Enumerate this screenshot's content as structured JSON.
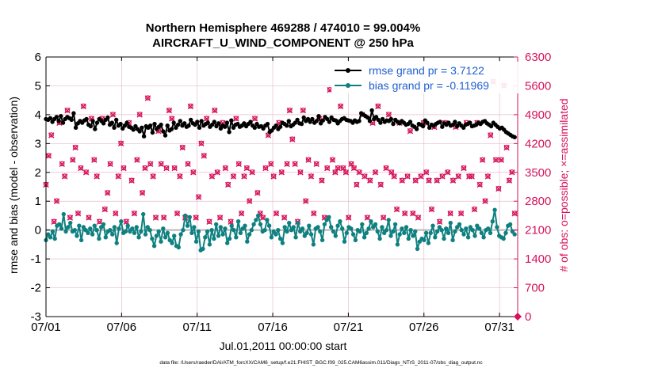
{
  "chart_data": {
    "type": "line",
    "title_line1": "Northern Hemisphere 469288 / 474010 = 99.004%",
    "title_line2": "AIRCRAFT_U_WIND_COMPONENT @ 250 hPa",
    "xlabel": "Jul.01,2011 00:00:00 start",
    "ylabel_left": "rmse and bias (model - observation)",
    "ylabel_right": "# of obs: o=possible; ×=assimilated",
    "xlim": [
      0,
      31.2
    ],
    "ylim_left": [
      -3,
      6
    ],
    "ylim_right": [
      0,
      6300
    ],
    "x_ticks": [
      {
        "value": 0,
        "label": "07/01"
      },
      {
        "value": 5,
        "label": "07/06"
      },
      {
        "value": 10,
        "label": "07/11"
      },
      {
        "value": 15,
        "label": "07/16"
      },
      {
        "value": 20,
        "label": "07/21"
      },
      {
        "value": 25,
        "label": "07/26"
      },
      {
        "value": 30,
        "label": "07/31"
      }
    ],
    "y_ticks_left": [
      "-3",
      "-2",
      "-1",
      "0",
      "1",
      "2",
      "3",
      "4",
      "5",
      "6"
    ],
    "y_ticks_right": [
      "0",
      "700",
      "1400",
      "2100",
      "2800",
      "3500",
      "4200",
      "4900",
      "5600",
      "6300"
    ],
    "grid": true,
    "legend_position": "top-right",
    "colors": {
      "rmse": "#000000",
      "bias": "#0f8080",
      "obs": "#d6135a",
      "legend_text": "#1f5fd0",
      "grid": "#e8bcd0",
      "zero_line": "#b5b5b5"
    },
    "series": [
      {
        "name": "rmse grand pr = 3.7122",
        "axis": "left",
        "values": [
          3.85,
          3.82,
          3.88,
          3.75,
          3.85,
          3.92,
          3.78,
          3.95,
          3.72,
          3.85,
          3.92,
          3.88,
          3.82,
          4.05,
          3.55,
          3.7,
          3.78,
          3.72,
          3.8,
          3.85,
          3.65,
          3.6,
          3.78,
          3.5,
          3.72,
          3.85,
          3.78,
          3.7,
          3.82,
          3.9,
          3.65,
          3.72,
          3.55,
          3.82,
          3.62,
          3.68,
          3.52,
          3.62,
          3.72,
          3.58,
          3.55,
          3.48,
          3.6,
          3.5,
          3.42,
          3.55,
          3.25,
          3.6,
          3.55,
          3.62,
          3.38,
          3.68,
          3.5,
          3.58,
          3.65,
          3.42,
          3.28,
          3.62,
          3.45,
          3.5,
          3.72,
          3.55,
          3.65,
          3.78,
          3.62,
          3.7,
          3.58,
          3.62,
          3.82,
          3.7,
          3.65,
          3.75,
          3.55,
          3.78,
          3.62,
          3.68,
          3.72,
          3.58,
          3.65,
          3.75,
          3.6,
          3.7,
          3.52,
          3.62,
          3.58,
          3.72,
          3.4,
          3.8,
          3.55,
          3.65,
          3.68,
          3.58,
          3.62,
          3.7,
          3.6,
          3.68,
          3.75,
          3.62,
          3.55,
          3.68,
          3.58,
          3.6,
          3.52,
          3.62,
          3.68,
          3.4,
          3.45,
          3.55,
          3.62,
          3.5,
          3.58,
          3.72,
          3.68,
          3.62,
          3.78,
          3.6,
          3.65,
          3.72,
          3.82,
          3.7,
          3.68,
          3.9,
          3.78,
          3.85,
          3.75,
          3.85,
          3.72,
          3.78,
          3.95,
          3.7,
          3.8,
          3.92,
          3.85,
          3.75,
          3.9,
          3.82,
          3.8,
          3.7,
          3.78,
          3.85,
          3.88,
          3.82,
          3.8,
          3.78,
          3.72,
          3.8,
          3.75,
          3.78,
          4.05,
          4.0,
          3.95,
          3.9,
          3.78,
          4.15,
          3.85,
          3.92,
          3.82,
          3.72,
          3.85,
          3.75,
          3.8,
          3.78,
          3.85,
          3.68,
          3.82,
          3.75,
          3.7,
          3.78,
          3.72,
          3.65,
          3.68,
          3.75,
          3.62,
          3.58,
          3.5,
          3.68,
          3.65,
          3.6,
          3.8,
          3.72,
          3.55,
          3.65,
          3.62,
          3.68,
          3.72,
          3.75,
          3.58,
          3.7,
          3.65,
          3.72,
          3.62,
          3.65,
          3.75,
          3.6,
          3.7,
          3.62,
          3.55,
          3.65,
          3.68,
          3.72,
          3.6,
          3.62,
          3.65,
          3.72,
          3.68,
          3.75,
          3.78,
          3.7,
          3.65,
          3.6,
          3.72,
          3.65,
          3.58,
          3.52,
          3.55,
          3.48,
          3.4,
          3.35,
          3.3,
          3.25,
          3.22
        ]
      },
      {
        "name": "bias grand pr = -0.11969",
        "axis": "left",
        "values": [
          -0.35,
          -0.15,
          -0.25,
          -0.05,
          -0.3,
          0.15,
          0.2,
          0.05,
          0.55,
          -0.05,
          0.1,
          0.25,
          -0.05,
          0.0,
          -0.2,
          0.15,
          -0.35,
          0.1,
          0.0,
          -0.1,
          0.05,
          -0.15,
          0.15,
          0.0,
          -0.3,
          0.1,
          0.2,
          -0.25,
          -0.05,
          0.0,
          -0.15,
          0.1,
          -0.45,
          0.05,
          0.3,
          -0.1,
          -0.05,
          0.15,
          -0.05,
          0.05,
          -0.1,
          0.1,
          -0.25,
          -0.05,
          0.55,
          -0.15,
          0.1,
          0.0,
          -0.3,
          -0.55,
          -0.2,
          -0.05,
          -0.4,
          0.05,
          -0.25,
          -0.1,
          -0.35,
          -0.45,
          -0.2,
          -0.55,
          -0.6,
          -0.15,
          0.0,
          0.5,
          0.15,
          0.45,
          -0.1,
          0.1,
          -0.4,
          -0.05,
          -0.7,
          -0.65,
          -0.25,
          -0.05,
          -0.5,
          0.0,
          -0.3,
          0.2,
          -0.2,
          0.1,
          -0.15,
          0.05,
          -0.45,
          -0.3,
          0.15,
          0.0,
          -0.25,
          0.3,
          -0.1,
          0.05,
          0.15,
          -0.4,
          -0.15,
          0.0,
          0.2,
          0.35,
          0.5,
          0.2,
          -0.05,
          0.0,
          0.35,
          0.15,
          -0.25,
          -0.05,
          -0.15,
          0.0,
          -0.3,
          -0.45,
          0.1,
          -0.05,
          0.25,
          0.0,
          0.1,
          -0.25,
          0.25,
          -0.05,
          0.05,
          -0.2,
          -0.1,
          0.15,
          -0.15,
          -0.5,
          0.05,
          0.1,
          -0.05,
          -0.35,
          0.2,
          0.35,
          0.45,
          0.1,
          -0.05,
          -0.2,
          0.15,
          0.3,
          0.05,
          -0.4,
          -0.1,
          0.1,
          0.05,
          -0.15,
          -0.35,
          0.0,
          -0.05,
          0.2,
          -0.25,
          -0.1,
          0.05,
          0.3,
          0.1,
          0.2,
          -0.05,
          -0.3,
          0.1,
          -0.1,
          0.0,
          0.35,
          -0.2,
          -0.05,
          0.2,
          -0.5,
          -0.15,
          0.05,
          -0.1,
          0.1,
          -0.3,
          0.0,
          -0.2,
          -0.05,
          -0.65,
          -0.4,
          -0.3,
          -0.35,
          -0.1,
          -0.45,
          -0.1,
          0.15,
          -0.25,
          -0.05,
          0.1,
          0.0,
          -0.3,
          0.05,
          -0.1,
          0.25,
          -0.35,
          -0.05,
          0.1,
          0.2,
          0.0,
          -0.15,
          0.05,
          -0.25,
          0.1,
          0.0,
          -0.2,
          0.15,
          0.05,
          -0.1,
          -0.25,
          0.0,
          0.05,
          -0.1,
          0.3,
          0.7,
          0.1,
          -0.2,
          -0.25,
          -0.3,
          -0.1,
          0.15,
          0.2,
          -0.05,
          -0.15
        ]
      },
      {
        "name": "observations possible (o) / assimilated (×)",
        "axis": "right",
        "marker": "o and × overlaid",
        "values": [
          3200,
          3900,
          4400,
          2300,
          2800,
          4700,
          3700,
          3400,
          5000,
          2400,
          3800,
          4100,
          2500,
          3600,
          5100,
          3500,
          2400,
          4800,
          3800,
          3400,
          2300,
          4800,
          2600,
          3000,
          3700,
          4900,
          2500,
          3400,
          4200,
          3600,
          2300,
          4700,
          3300,
          2500,
          3800,
          4900,
          3000,
          3600,
          5300,
          3700,
          3400,
          2400,
          4500,
          3700,
          2400,
          3600,
          5000,
          4800,
          3600,
          2500,
          3400,
          4100,
          2400,
          3700,
          5100,
          3500,
          2400,
          2900,
          4200,
          3900,
          4800,
          2300,
          3400,
          5000,
          3500,
          2400,
          4700,
          3600,
          3200,
          2300,
          3400,
          4800,
          3700,
          2500,
          3400,
          3600,
          2800,
          3500,
          4800,
          3000,
          2500,
          2400,
          3600,
          4400,
          3700,
          3400,
          2500,
          4700,
          3500,
          2400,
          3700,
          5000,
          4300,
          3700,
          2300,
          3500,
          5000,
          2800,
          3800,
          3400,
          2500,
          3700,
          4800,
          3300,
          2400,
          3600,
          5500,
          3800,
          3500,
          3600,
          5100,
          3600,
          3500,
          2400,
          3700,
          3600,
          3200,
          3500,
          4900,
          3400,
          2400,
          3300,
          4700,
          3500,
          5100,
          3200,
          2400,
          3600,
          4900,
          3500,
          3400,
          2600,
          4700,
          3300,
          2500,
          3400,
          4500,
          2500,
          3300,
          2400,
          3400,
          4700,
          3500,
          3300,
          2600,
          4600,
          3300,
          2300,
          3400,
          4700,
          3500,
          2500,
          3300,
          4600,
          3400,
          2500,
          3600,
          4700,
          3400,
          3400,
          2600,
          4700,
          3200,
          3800,
          2800,
          3400,
          4400,
          5700,
          3800,
          3100,
          3800,
          5600,
          4100,
          3300,
          3500,
          2500
        ]
      }
    ],
    "footer": "data file: /Users/raeder/DAI/ATM_forcXX/CAM6_setup/f.e21.FHIST_BGC.f09_025.CAM6assim.011/Diags_NTrS_2011-07/obs_diag_output.nc"
  }
}
